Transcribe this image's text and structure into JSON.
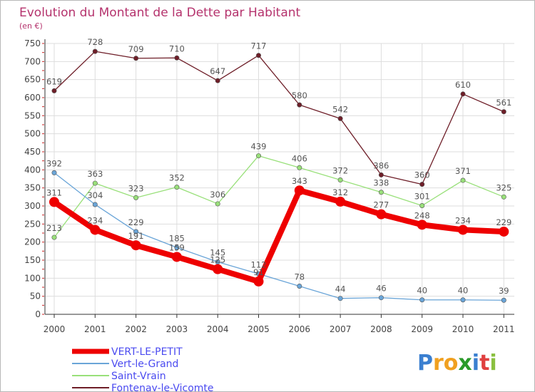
{
  "chart_data": {
    "type": "line",
    "title": "Evolution du Montant de la Dette par Habitant",
    "subtitle": "(en €)",
    "categories": [
      "2000",
      "2001",
      "2002",
      "2003",
      "2004",
      "2005",
      "2006",
      "2007",
      "2008",
      "2009",
      "2010",
      "2011"
    ],
    "ylim": [
      0,
      750
    ],
    "yticks": [
      0,
      50,
      100,
      150,
      200,
      250,
      300,
      350,
      400,
      450,
      500,
      550,
      600,
      650,
      700,
      750
    ],
    "grid": true,
    "legend_position": "bottom-left",
    "series": [
      {
        "name": "Fontenay-le-Vicomte",
        "color": "#6e1e28",
        "values": [
          619,
          728,
          709,
          710,
          647,
          717,
          580,
          542,
          386,
          360,
          610,
          561
        ]
      },
      {
        "name": "Saint-Vrain",
        "color": "#99e07a",
        "values": [
          213,
          363,
          323,
          352,
          306,
          439,
          406,
          372,
          338,
          301,
          371,
          325
        ]
      },
      {
        "name": "Vert-le-Grand",
        "color": "#6aa5d8",
        "values": [
          392,
          304,
          229,
          185,
          145,
          112,
          78,
          44,
          46,
          40,
          40,
          39
        ]
      },
      {
        "name": "VERT-LE-PETIT",
        "color": "#ee0000",
        "values": [
          311,
          234,
          191,
          159,
          125,
          91,
          343,
          312,
          277,
          248,
          234,
          229
        ]
      }
    ]
  },
  "legend": {
    "items": [
      {
        "label": "VERT-LE-PETIT",
        "color": "#ee0000"
      },
      {
        "label": "Vert-le-Grand",
        "color": "#6aa5d8"
      },
      {
        "label": "Saint-Vrain",
        "color": "#99e07a"
      },
      {
        "label": "Fontenay-le-Vicomte",
        "color": "#6e1e28"
      }
    ]
  },
  "logo": {
    "letters": [
      {
        "ch": "P",
        "color": "#3a7fd0"
      },
      {
        "ch": "r",
        "color": "#f0a020"
      },
      {
        "ch": "o",
        "color": "#f0a020"
      },
      {
        "ch": "x",
        "color": "#2a9a2a"
      },
      {
        "ch": "i",
        "color": "#3a7fd0"
      },
      {
        "ch": "t",
        "color": "#e04040"
      },
      {
        "ch": "i",
        "color": "#8ac040"
      }
    ]
  }
}
